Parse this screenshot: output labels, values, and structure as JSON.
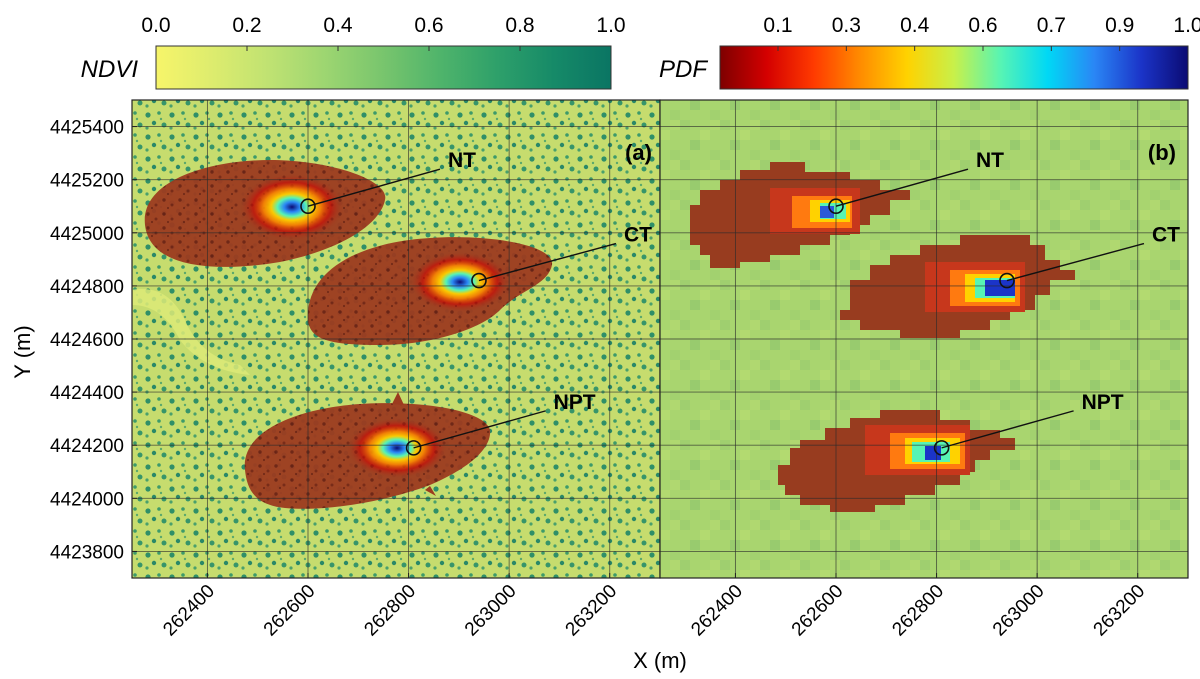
{
  "chart_data": {
    "type": "heatmap",
    "colorbars": [
      {
        "id": "ndvi",
        "label": "NDVI",
        "ticks": [
          "0.0",
          "0.2",
          "0.4",
          "0.6",
          "0.8",
          "1.0"
        ],
        "range": [
          0,
          1
        ],
        "colors": [
          "#f7f56a",
          "#ddec6e",
          "#bfe272",
          "#9cd571",
          "#78c56d",
          "#4fb46b",
          "#2ea06a",
          "#168a68",
          "#0a7563"
        ]
      },
      {
        "id": "pdf",
        "label": "PDF",
        "ticks": [
          "0.1",
          "0.3",
          "0.4",
          "0.6",
          "0.7",
          "0.9",
          "1.0"
        ],
        "range": [
          0,
          1
        ],
        "colors": [
          "#7e0000",
          "#d40000",
          "#ff3a00",
          "#ff8c00",
          "#ffd200",
          "#c8f04a",
          "#57f4b4",
          "#00d8f5",
          "#2a86f5",
          "#1b34c8",
          "#0b0b73"
        ]
      }
    ],
    "xlabel": "X (m)",
    "ylabel": "Y (m)",
    "xlim": [
      262250,
      263300
    ],
    "ylim": [
      4423700,
      4425500
    ],
    "x_ticks": [
      262400,
      262600,
      262800,
      263000,
      263200
    ],
    "y_ticks": [
      4425400,
      4425200,
      4425000,
      4424800,
      4424600,
      4424400,
      4424200,
      4424000,
      4423800
    ],
    "x_tick_labels": [
      "262400",
      "262600",
      "262800",
      "263000",
      "263200"
    ],
    "y_tick_labels": [
      "4425400",
      "4425200",
      "4425000",
      "4424800",
      "4424600",
      "4424400",
      "4424200",
      "4424000",
      "4423800"
    ],
    "grid": true,
    "panels": [
      {
        "id": "a",
        "label": "(a)",
        "background": "NDVI"
      },
      {
        "id": "b",
        "label": "(b)",
        "background": "NDVI (coarse)"
      }
    ],
    "towers": [
      {
        "name": "NT",
        "x": 262600,
        "y": 4425100
      },
      {
        "name": "CT",
        "x": 262940,
        "y": 4424820
      },
      {
        "name": "NPT",
        "x": 262810,
        "y": 4424190
      }
    ]
  }
}
